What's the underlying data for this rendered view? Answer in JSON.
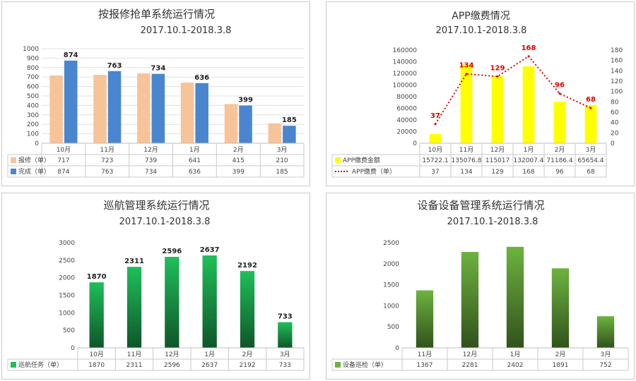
{
  "chart_data": [
    {
      "id": "c1",
      "type": "bar",
      "title": "按报修抢单系统运行情况",
      "subtitle": "2017.10.1-2018.3.8",
      "categories": [
        "10月",
        "11月",
        "12月",
        "1月",
        "2月",
        "3月"
      ],
      "ylim": [
        0,
        1000
      ],
      "yticks": [
        0,
        100,
        200,
        300,
        400,
        500,
        600,
        700,
        800,
        900,
        1000
      ],
      "grid": true,
      "series": [
        {
          "name": "报修（单）",
          "values": [
            717,
            723,
            739,
            641,
            415,
            210
          ],
          "color": "#f7c49a"
        },
        {
          "name": "完成（单）",
          "values": [
            874,
            763,
            734,
            636,
            399,
            185
          ],
          "color": "#4a86cf",
          "labels": true
        }
      ]
    },
    {
      "id": "c2",
      "type": "bar",
      "title": "APP缴费情况",
      "subtitle": "2017.10.1-2018.3.8",
      "categories": [
        "10月",
        "11月",
        "12月",
        "1月",
        "2月",
        "3月"
      ],
      "ylim": [
        0,
        160000
      ],
      "yticks": [
        0,
        20000,
        40000,
        60000,
        80000,
        100000,
        120000,
        140000,
        160000
      ],
      "y2lim": [
        0,
        180
      ],
      "y2ticks": [
        0,
        20,
        40,
        60,
        80,
        100,
        120,
        140,
        160,
        180
      ],
      "grid": false,
      "series": [
        {
          "name": "APP缴费金额",
          "values": [
            15722.1,
            135076.8,
            115017,
            132007.4,
            71186.4,
            65654.4
          ],
          "display": [
            "15722.1",
            "135076.8",
            "115017",
            "132007.4",
            "71186.4",
            "65654.4"
          ],
          "color": "#ffff00",
          "type": "bar"
        },
        {
          "name": "APP缴费（单）",
          "values": [
            37,
            134,
            129,
            168,
            96,
            68
          ],
          "color": "#e00000",
          "type": "line",
          "axis": "right",
          "labels": true
        }
      ]
    },
    {
      "id": "c3",
      "type": "bar",
      "title": "巡航管理系统运行情况",
      "subtitle": "2017.10.1-2018.3.8",
      "categories": [
        "10月",
        "11月",
        "12月",
        "1月",
        "2月",
        "3月"
      ],
      "ylim": [
        0,
        3000
      ],
      "yticks": [
        0,
        500,
        1000,
        1500,
        2000,
        2500,
        3000
      ],
      "grid": false,
      "series": [
        {
          "name": "巡航任务（单）",
          "values": [
            1870,
            2311,
            2596,
            2637,
            2192,
            733
          ],
          "color": "#1fbf5a",
          "labels": true
        }
      ]
    },
    {
      "id": "c4",
      "type": "bar",
      "title": "设备设备管理系统运行情况",
      "subtitle": "2017.10.1-2018.3.8",
      "categories": [
        "11月",
        "12月",
        "1月",
        "2月",
        "3月"
      ],
      "ylim": [
        0,
        2500
      ],
      "yticks": [
        0,
        500,
        1000,
        1500,
        2000,
        2500
      ],
      "grid": false,
      "series": [
        {
          "name": "设备巡检（单）",
          "values": [
            1367,
            2281,
            2402,
            1891,
            752
          ],
          "color": "#6db33f"
        }
      ]
    }
  ]
}
